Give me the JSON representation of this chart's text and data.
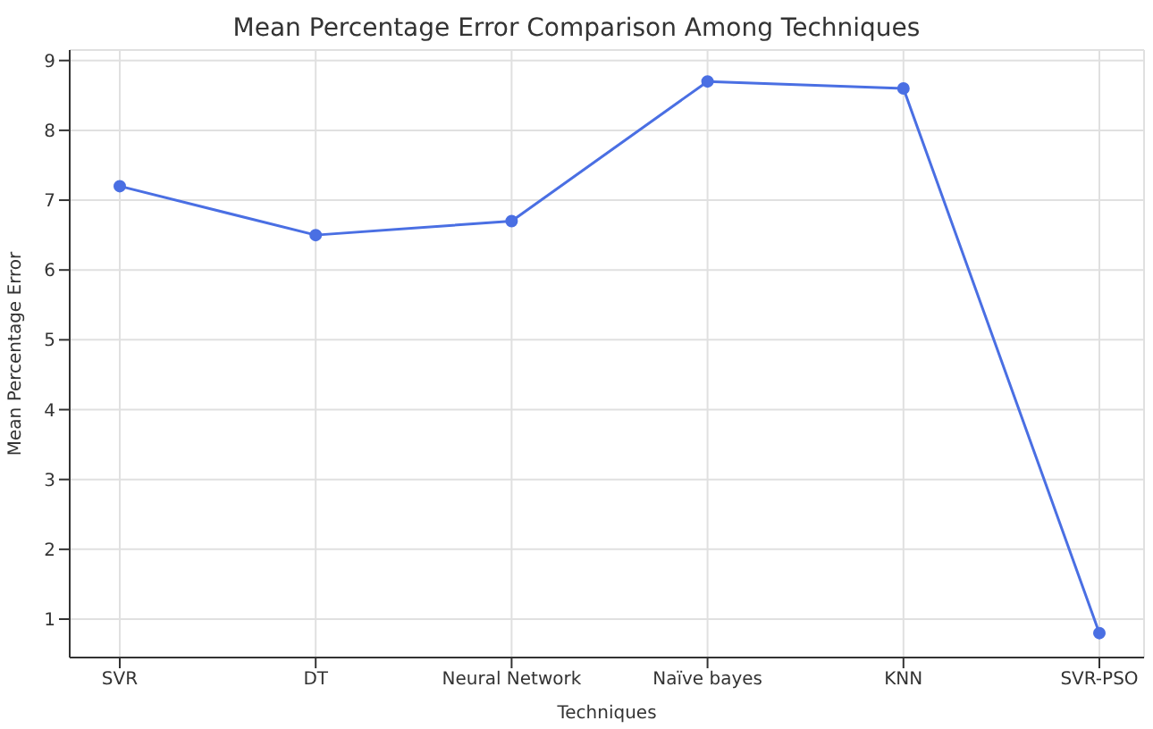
{
  "chart_data": {
    "type": "line",
    "title": "Mean Percentage Error Comparison Among Techniques",
    "xlabel": "Techniques",
    "ylabel": "Mean Percentage Error",
    "categories": [
      "SVR",
      "DT",
      "Neural Network",
      "Naïve bayes",
      "KNN",
      "SVR-PSO"
    ],
    "series": [
      {
        "color": "#4a6fe3",
        "values": [
          7.2,
          6.5,
          6.7,
          8.7,
          8.6,
          0.8
        ]
      }
    ],
    "ylim": [
      0.45,
      9.15
    ],
    "yticks": [
      1,
      2,
      3,
      4,
      5,
      6,
      7,
      8,
      9
    ],
    "grid": true,
    "marker": "circle",
    "line_style": "solid",
    "legend": false
  }
}
